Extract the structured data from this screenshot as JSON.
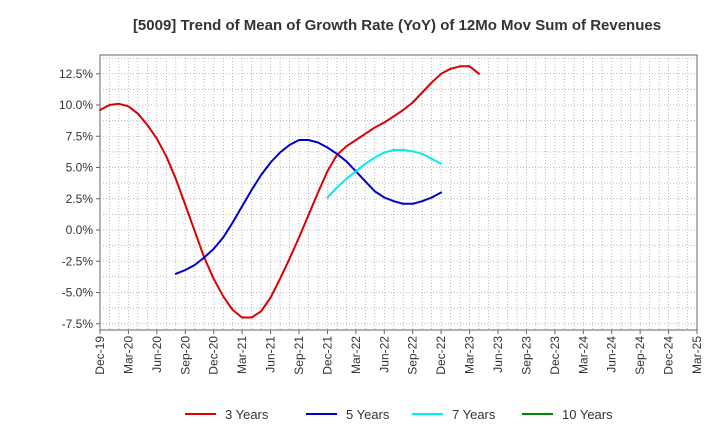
{
  "chart_data": {
    "type": "line",
    "title": "[5009]  Trend of Mean of Growth Rate (YoY) of 12Mo Mov Sum of Revenues",
    "x_labels": [
      "Dec-19",
      "Mar-20",
      "Jun-20",
      "Sep-20",
      "Dec-20",
      "Mar-21",
      "Jun-21",
      "Sep-21",
      "Dec-21",
      "Mar-22",
      "Jun-22",
      "Sep-22",
      "Dec-22",
      "Mar-23",
      "Jun-23",
      "Sep-23",
      "Dec-23",
      "Mar-24",
      "Jun-24",
      "Sep-24",
      "Dec-24",
      "Mar-25"
    ],
    "y_ticks": [
      "12.5%",
      "10.0%",
      "7.5%",
      "5.0%",
      "2.5%",
      "0.0%",
      "-2.5%",
      "-5.0%",
      "-7.5%"
    ],
    "y_tick_values": [
      12.5,
      10.0,
      7.5,
      5.0,
      2.5,
      0.0,
      -2.5,
      -5.0,
      -7.5
    ],
    "ylim": [
      -8.0,
      14.0
    ],
    "grid": true,
    "legend_position": "bottom",
    "series": [
      {
        "name": "3 Years",
        "color": "#dd0000",
        "start_index": 0,
        "values": [
          9.6,
          10.0,
          10.1,
          9.9,
          9.3,
          8.4,
          7.3,
          5.9,
          4.1,
          2.0,
          -0.1,
          -2.2,
          -3.9,
          -5.3,
          -6.4,
          -7.0,
          -7.0,
          -6.5,
          -5.4,
          -3.9,
          -2.3,
          -0.6,
          1.2,
          3.0,
          4.7,
          6.0,
          6.7,
          7.2,
          7.7,
          8.2,
          8.6,
          9.1,
          9.6,
          10.2,
          11.0,
          11.8,
          12.5,
          12.9,
          13.1,
          13.1,
          12.5
        ]
      },
      {
        "name": "5 Years",
        "color": "#0000cc",
        "start_index": 8,
        "values": [
          -3.5,
          -3.2,
          -2.8,
          -2.2,
          -1.5,
          -0.6,
          0.6,
          1.9,
          3.2,
          4.4,
          5.4,
          6.2,
          6.8,
          7.2,
          7.2,
          7.0,
          6.6,
          6.1,
          5.5,
          4.7,
          3.9,
          3.1,
          2.6,
          2.3,
          2.1,
          2.1,
          2.3,
          2.6,
          3.0
        ]
      },
      {
        "name": "7 Years",
        "color": "#00eeee",
        "start_index": 24,
        "values": [
          2.6,
          3.4,
          4.1,
          4.7,
          5.3,
          5.8,
          6.2,
          6.4,
          6.4,
          6.3,
          6.1,
          5.7,
          5.3
        ]
      },
      {
        "name": "10 Years",
        "color": "#008800",
        "start_index": 0,
        "values": []
      }
    ]
  }
}
